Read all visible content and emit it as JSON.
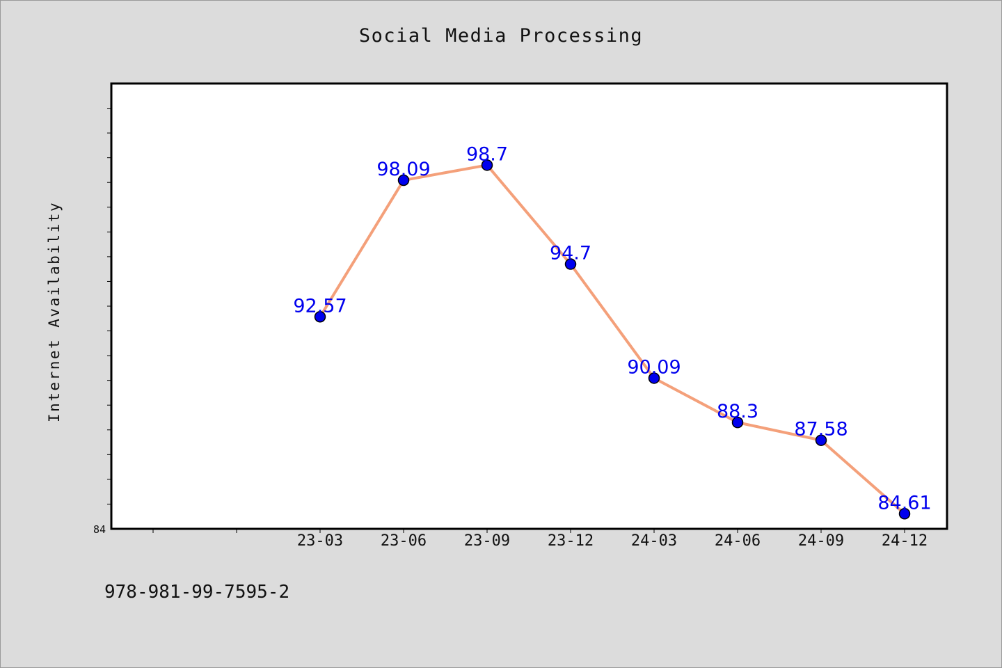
{
  "chart_data": {
    "type": "line",
    "title": "Social Media Processing",
    "ylabel": "Internet Availability",
    "xlabel": "",
    "categories": [
      "23-03",
      "23-06",
      "23-09",
      "23-12",
      "24-03",
      "24-06",
      "24-09",
      "24-12"
    ],
    "series": [
      {
        "values": [
          92.57,
          98.09,
          98.7,
          94.7,
          90.09,
          88.3,
          87.58,
          84.61
        ],
        "labels": [
          "92.57",
          "98.09",
          "98.7",
          "94.7",
          "90.09",
          "88.3",
          "87.58",
          "84.61"
        ]
      }
    ],
    "ylim": [
      84,
      102
    ],
    "y_tick_label": "84",
    "grid": false,
    "legend": "none",
    "line_color": "#f4a07a",
    "marker_color": "#0000ee",
    "label_color": "#0000ee"
  },
  "footer_text": "978-981-99-7595-2"
}
